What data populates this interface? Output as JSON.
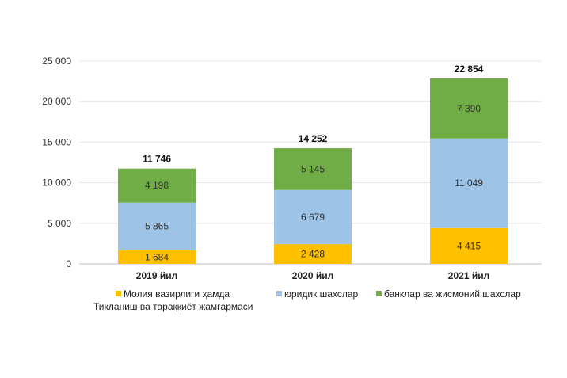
{
  "chart_data": {
    "type": "bar",
    "stacked": true,
    "title": "",
    "xlabel": "",
    "ylabel": "",
    "ylim": [
      0,
      25000
    ],
    "yticks": [
      0,
      5000,
      10000,
      15000,
      20000,
      25000
    ],
    "ytick_labels": [
      "0",
      "5 000",
      "10 000",
      "15 000",
      "20 000",
      "25 000"
    ],
    "grid": true,
    "legend_position": "bottom",
    "categories": [
      "2019 йил",
      "2020 йил",
      "2021 йил"
    ],
    "series": [
      {
        "name": "Молия вазирлиги ҳамда Тикланиш ва тараққиёт жамғармаси",
        "name_line1": "Молия вазирлиги ҳамда",
        "name_line2": "Тикланиш ва тараққиёт жамғармаси",
        "color": "#FFC000",
        "values": [
          1684,
          2428,
          4415
        ],
        "labels": [
          "1 684",
          "2 428",
          "4 415"
        ]
      },
      {
        "name": "юридик шахслар",
        "color": "#9DC3E6",
        "values": [
          5865,
          6679,
          11049
        ],
        "labels": [
          "5 865",
          "6 679",
          "11 049"
        ]
      },
      {
        "name": "банклар ва жисмоний шахслар",
        "color": "#70AD47",
        "values": [
          4198,
          5145,
          7390
        ],
        "labels": [
          "4 198",
          "5 145",
          "7 390"
        ]
      }
    ],
    "totals": [
      11746,
      14252,
      22854
    ],
    "total_labels": [
      "11 746",
      "14 252",
      "22 854"
    ]
  }
}
